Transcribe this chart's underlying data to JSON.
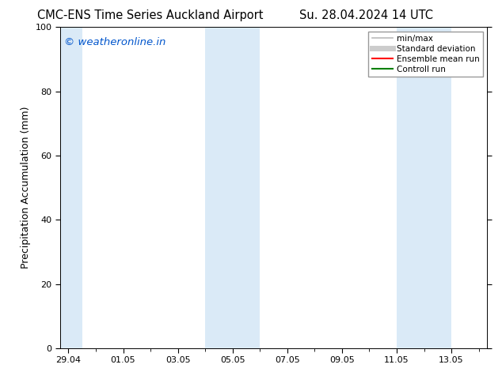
{
  "title_left": "CMC-ENS Time Series Auckland Airport",
  "title_right": "Su. 28.04.2024 14 UTC",
  "ylabel": "Precipitation Accumulation (mm)",
  "ylim": [
    0,
    100
  ],
  "yticks": [
    0,
    20,
    40,
    60,
    80,
    100
  ],
  "x_tick_labels": [
    "29.04",
    "01.05",
    "03.05",
    "05.05",
    "07.05",
    "09.05",
    "11.05",
    "13.05"
  ],
  "watermark": "© weatheronline.in",
  "watermark_color": "#0055cc",
  "background_color": "#ffffff",
  "plot_bg_color": "#ffffff",
  "shaded_color": "#daeaf7",
  "legend_entries": [
    {
      "label": "min/max",
      "color": "#bbbbbb",
      "lw": 1.2
    },
    {
      "label": "Standard deviation",
      "color": "#cccccc",
      "lw": 5
    },
    {
      "label": "Ensemble mean run",
      "color": "#ff0000",
      "lw": 1.5
    },
    {
      "label": "Controll run",
      "color": "#008000",
      "lw": 1.5
    }
  ],
  "title_fontsize": 10.5,
  "label_fontsize": 9,
  "tick_fontsize": 8,
  "watermark_fontsize": 9.5
}
